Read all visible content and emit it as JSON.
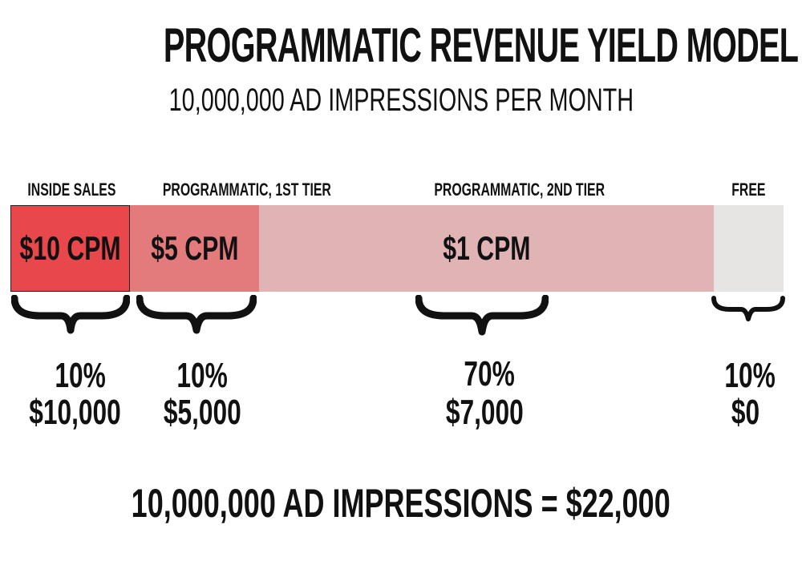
{
  "title": "PROGRAMMATIC REVENUE YIELD MODEL",
  "subtitle": "10,000,000 AD IMPRESSIONS PER MONTH",
  "segments": [
    {
      "label": "INSIDE SALES",
      "cpm": "$10 CPM",
      "share": 10,
      "percent": "10%",
      "revenue": "$10,000",
      "color": "#e8474b"
    },
    {
      "label": "PROGRAMMATIC, 1ST TIER",
      "cpm": "$5 CPM",
      "share": 10,
      "percent": "10%",
      "revenue": "$5,000",
      "color": "#e37b7c"
    },
    {
      "label": "PROGRAMMATIC, 2ND TIER",
      "cpm": "$1 CPM",
      "share": 70,
      "percent": "70%",
      "revenue": "$7,000",
      "color": "#e0b4b5"
    },
    {
      "label": "FREE",
      "cpm": "",
      "share": 10,
      "percent": "10%",
      "revenue": "$0",
      "color": "#e7e5e4"
    }
  ],
  "total": "10,000,000 AD IMPRESSIONS = $22,000"
}
